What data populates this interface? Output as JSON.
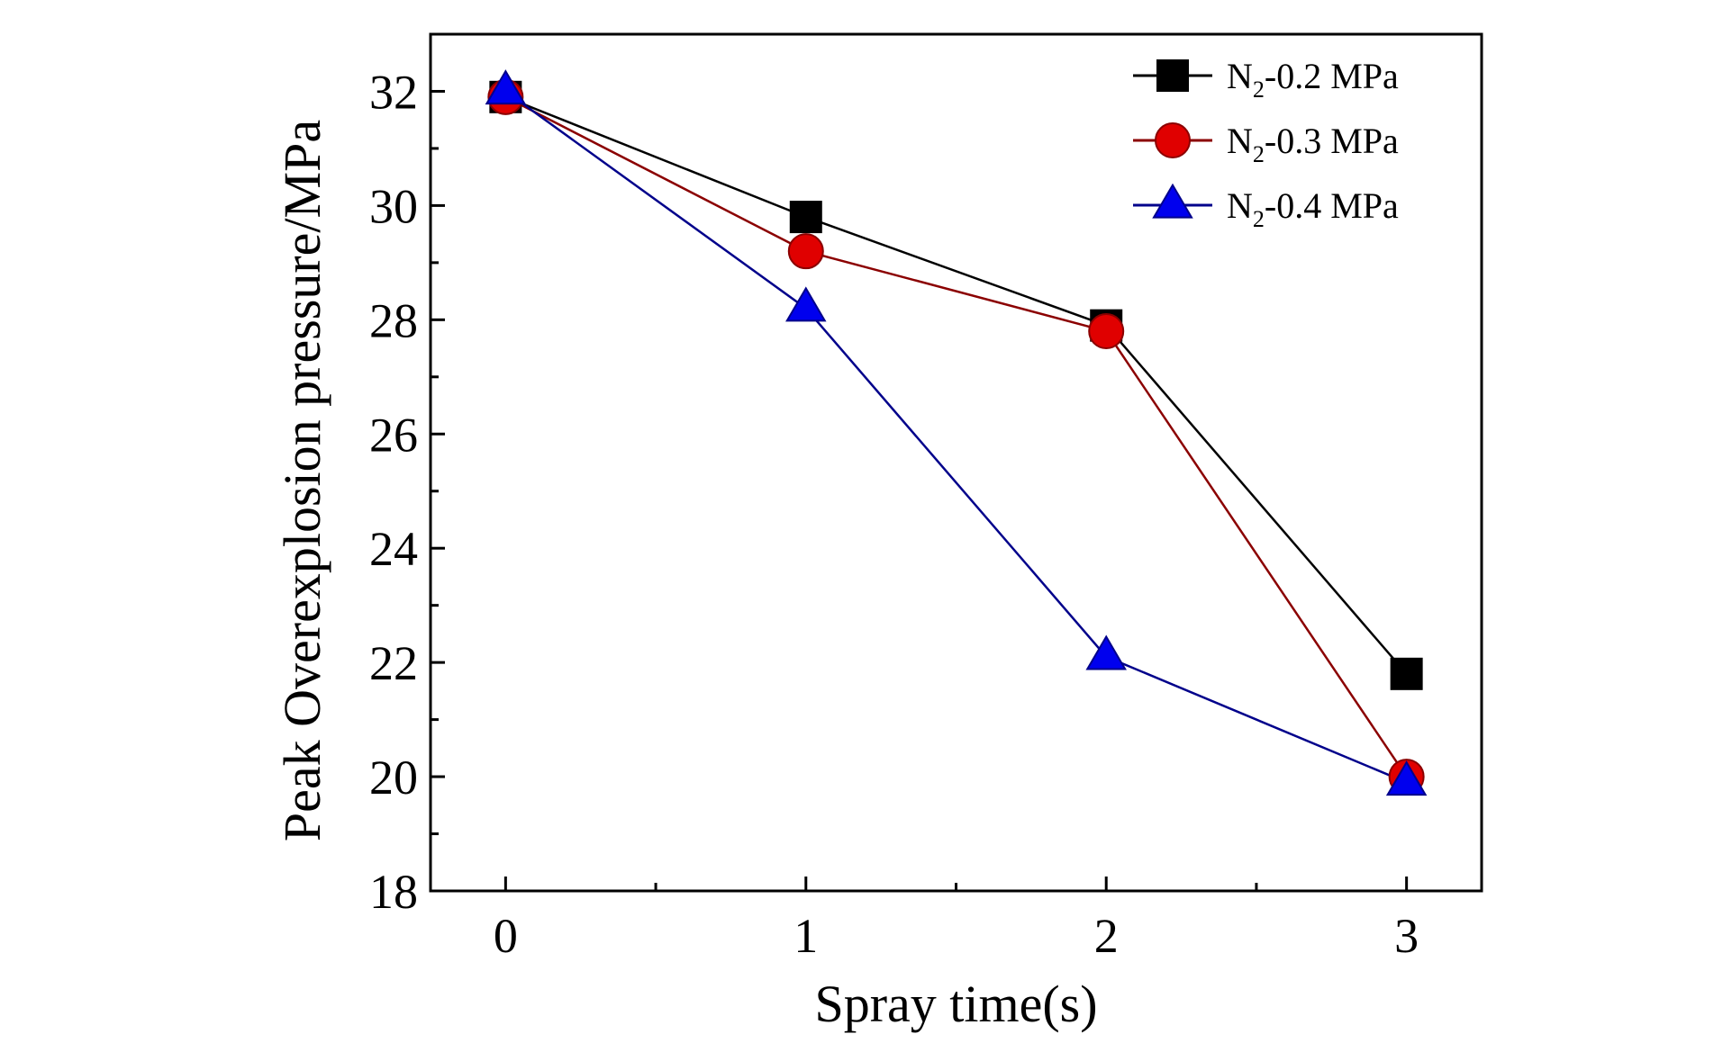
{
  "chart_data": {
    "type": "line",
    "xlabel": "Spray time(s)",
    "ylabel": "Peak Overexplosion pressure/MPa",
    "x": [
      0,
      1,
      2,
      3
    ],
    "xlim": [
      -0.25,
      3.25
    ],
    "ylim": [
      18,
      33
    ],
    "x_ticks": [
      0,
      1,
      2,
      3
    ],
    "x_tick_labels": [
      "0",
      "1",
      "2",
      "3"
    ],
    "y_ticks": [
      18,
      20,
      22,
      24,
      26,
      28,
      30,
      32
    ],
    "y_tick_labels": [
      "18",
      "20",
      "22",
      "24",
      "26",
      "28",
      "30",
      "32"
    ],
    "grid": false,
    "legend_position": "top-right",
    "series": [
      {
        "name": "N₂-0.2 MPa",
        "name_parts": {
          "base": "N",
          "sub": "2",
          "rest": "-0.2 MPa"
        },
        "marker": "square",
        "color": "#000000",
        "values": [
          31.9,
          29.8,
          27.9,
          21.8
        ]
      },
      {
        "name": "N₂-0.3 MPa",
        "name_parts": {
          "base": "N",
          "sub": "2",
          "rest": "-0.3 MPa"
        },
        "marker": "circle",
        "color": "#e00000",
        "line_color": "#8b0000",
        "values": [
          31.9,
          29.2,
          27.8,
          20.0
        ]
      },
      {
        "name": "N₂-0.4 MPa",
        "name_parts": {
          "base": "N",
          "sub": "2",
          "rest": "-0.4 MPa"
        },
        "marker": "triangle",
        "color": "#0000ee",
        "line_color": "#00008b",
        "values": [
          32.0,
          28.2,
          22.1,
          19.9
        ]
      }
    ]
  }
}
